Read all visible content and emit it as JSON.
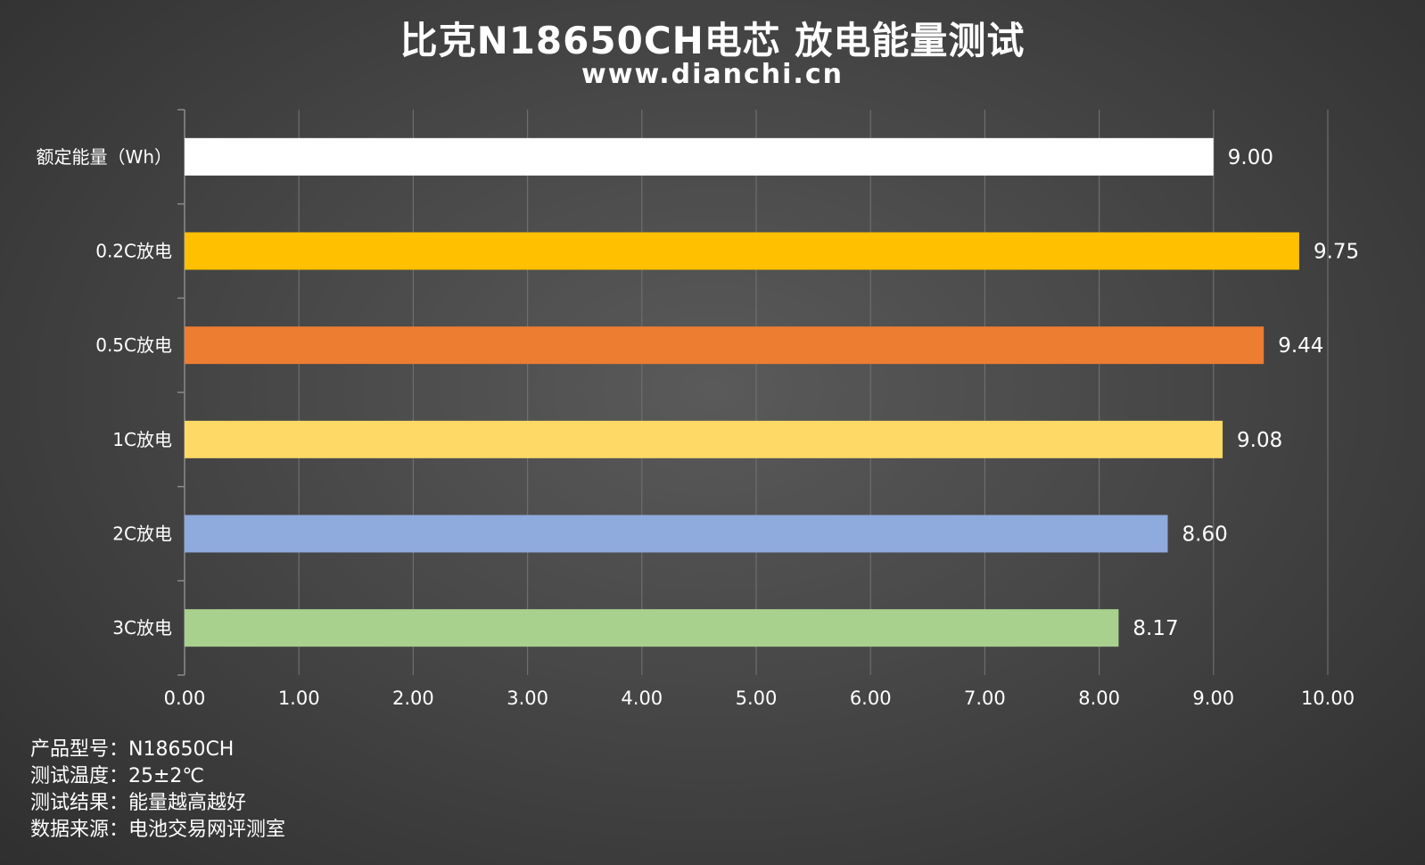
{
  "header": {
    "title": "比克N18650CH电芯 放电能量测试",
    "subtitle": "www.dianchi.cn"
  },
  "chart_data": {
    "type": "bar",
    "orientation": "horizontal",
    "title": "比克N18650CH电芯 放电能量测试",
    "categories": [
      "额定能量（Wh）",
      "0.2C放电",
      "0.5C放电",
      "1C放电",
      "2C放电",
      "3C放电"
    ],
    "values": [
      9.0,
      9.75,
      9.44,
      9.08,
      8.6,
      8.17
    ],
    "value_labels": [
      "9.00",
      "9.75",
      "9.44",
      "9.08",
      "8.60",
      "8.17"
    ],
    "bar_colors": [
      "#ffffff",
      "#ffc000",
      "#ed7d31",
      "#ffd966",
      "#8faadc",
      "#a9d18e"
    ],
    "x_ticks": [
      "0.00",
      "1.00",
      "2.00",
      "3.00",
      "4.00",
      "5.00",
      "6.00",
      "7.00",
      "8.00",
      "9.00",
      "10.00"
    ],
    "xlim": [
      0,
      10
    ],
    "grid": true,
    "xlabel": "",
    "ylabel": ""
  },
  "notes": [
    "产品型号：N18650CH",
    "测试温度：25±2℃",
    "测试结果：能量越高越好",
    "数据来源：电池交易网评测室"
  ]
}
